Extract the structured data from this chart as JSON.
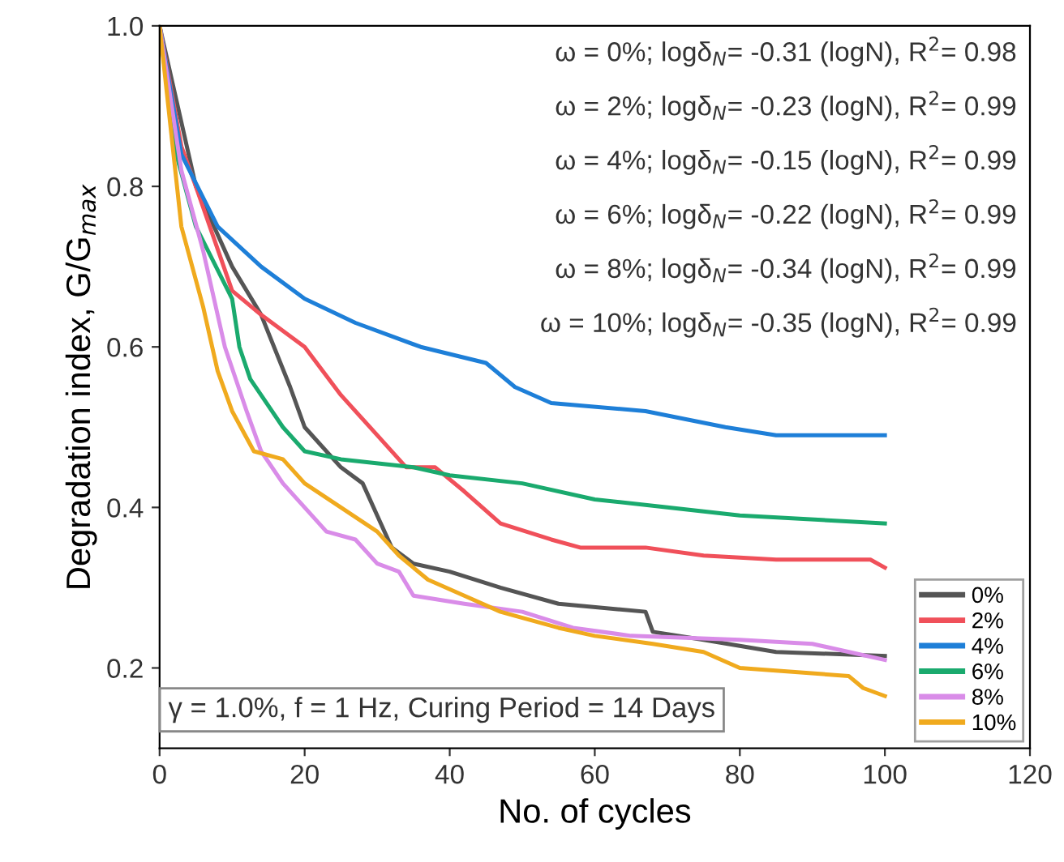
{
  "chart_data": {
    "type": "line",
    "xlabel": "No. of cycles",
    "ylabel": "Degradation index, G/G$_{max}$",
    "xlim": [
      0,
      120
    ],
    "ylim": [
      0.1,
      1.0
    ],
    "xticks": [
      0,
      20,
      40,
      60,
      80,
      100,
      120
    ],
    "yticks": [
      0.2,
      0.4,
      0.6,
      0.8,
      {
        "value": 1,
        "label": "1.0"
      }
    ],
    "legend": "bottom right",
    "grid": false,
    "marker": "none",
    "line_style": "solid",
    "annotations": [
      "ω = 0%; logδ$_{N}$= -0.31 (logN), R$^{2}$= 0.98",
      "ω = 2%; logδ$_{N}$= -0.23 (logN), R$^{2}$= 0.99",
      "ω = 4%; logδ$_{N}$= -0.15 (logN), R$^{2}$= 0.99",
      "ω = 6%; logδ$_{N}$= -0.22 (logN), R$^{2}$= 0.99",
      "ω = 8%; logδ$_{N}$= -0.34 (logN), R$^{2}$= 0.99",
      "ω = 10%; logδ$_{N}$= -0.35 (logN), R$^{2}$= 0.99",
      "γ = 1.0%, f = 1 Hz, Curing Period = 14 Days"
    ],
    "series": [
      {
        "name": "0%",
        "color": "#555555",
        "x": [
          0,
          5,
          10,
          14,
          18,
          20,
          25,
          28,
          30,
          32,
          35,
          40,
          47,
          55,
          67,
          68,
          75,
          85,
          100
        ],
        "values": [
          1.0,
          0.8,
          0.7,
          0.64,
          0.55,
          0.5,
          0.45,
          0.43,
          0.39,
          0.35,
          0.33,
          0.32,
          0.3,
          0.28,
          0.27,
          0.245,
          0.235,
          0.22,
          0.215
        ]
      },
      {
        "name": "2%",
        "color": "#f0505a",
        "x": [
          0,
          3,
          5,
          10,
          14,
          20,
          25,
          30,
          34,
          38,
          42,
          47,
          54,
          58,
          67,
          75,
          85,
          98,
          100
        ],
        "values": [
          1.0,
          0.85,
          0.8,
          0.67,
          0.64,
          0.6,
          0.54,
          0.49,
          0.45,
          0.45,
          0.42,
          0.38,
          0.36,
          0.35,
          0.35,
          0.34,
          0.335,
          0.335,
          0.325
        ]
      },
      {
        "name": "4%",
        "color": "#1e7fd8",
        "x": [
          0,
          3,
          8,
          14,
          20,
          27,
          36,
          45,
          49,
          54,
          67,
          78,
          85,
          100
        ],
        "values": [
          1.0,
          0.84,
          0.75,
          0.7,
          0.66,
          0.63,
          0.6,
          0.58,
          0.55,
          0.53,
          0.52,
          0.5,
          0.49,
          0.49
        ]
      },
      {
        "name": "6%",
        "color": "#1aaa6e",
        "x": [
          0,
          2,
          5,
          10,
          11,
          12.5,
          17,
          20,
          25,
          35,
          40,
          50,
          60,
          70,
          80,
          100
        ],
        "values": [
          1.0,
          0.85,
          0.75,
          0.66,
          0.6,
          0.56,
          0.5,
          0.47,
          0.46,
          0.45,
          0.44,
          0.43,
          0.41,
          0.4,
          0.39,
          0.38
        ]
      },
      {
        "name": "8%",
        "color": "#d98ce8",
        "x": [
          0,
          3,
          6,
          9,
          12,
          14,
          17,
          20,
          23,
          27,
          30,
          33,
          35,
          42,
          50,
          57,
          65,
          80,
          90,
          100
        ],
        "values": [
          1.0,
          0.82,
          0.72,
          0.6,
          0.52,
          0.47,
          0.43,
          0.4,
          0.37,
          0.36,
          0.33,
          0.32,
          0.29,
          0.28,
          0.27,
          0.25,
          0.24,
          0.235,
          0.23,
          0.21
        ]
      },
      {
        "name": "10%",
        "color": "#f0aa1e",
        "x": [
          0,
          3,
          6,
          8,
          10,
          13,
          17,
          20,
          25,
          30,
          33,
          37,
          42,
          47,
          55,
          60,
          68,
          75,
          80,
          95,
          97,
          100
        ],
        "values": [
          1.0,
          0.75,
          0.65,
          0.57,
          0.52,
          0.47,
          0.46,
          0.43,
          0.4,
          0.37,
          0.34,
          0.31,
          0.29,
          0.27,
          0.25,
          0.24,
          0.23,
          0.22,
          0.2,
          0.19,
          0.175,
          0.165
        ]
      }
    ]
  }
}
